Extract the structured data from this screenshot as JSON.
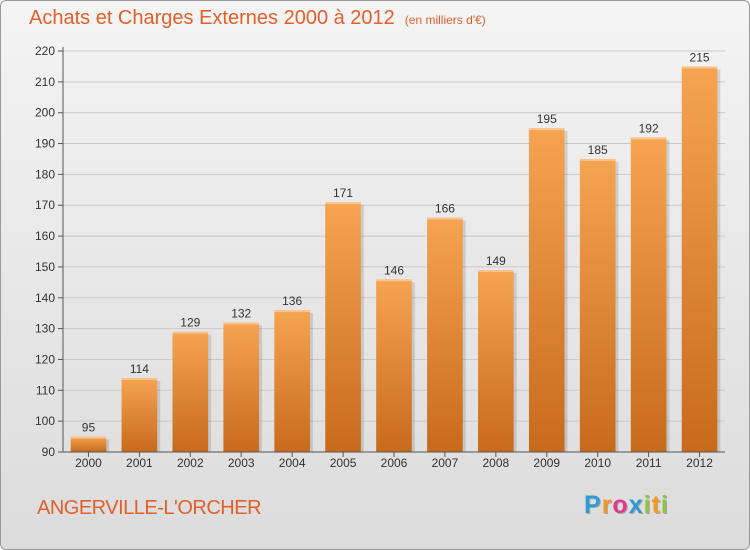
{
  "title": "Achats et Charges Externes 2000 à 2012",
  "subtitle": "(en milliers d'€)",
  "commune": "ANGERVILLE-L'ORCHER",
  "logo": {
    "text": "Proxiti",
    "letters": [
      "P",
      "r",
      "o",
      "x",
      "i",
      "t",
      "i"
    ],
    "colors": [
      "#2e9bd6",
      "#f39a1d",
      "#e23a8a",
      "#2e9bd6",
      "#8cc63f",
      "#f39a1d",
      "#8cc63f"
    ]
  },
  "colors": {
    "bar_top": "#f6a452",
    "bar_bottom": "#c86a1c",
    "title": "#e2602a"
  },
  "chart_data": {
    "type": "bar",
    "title": "Achats et Charges Externes 2000 à 2012",
    "subtitle": "(en milliers d'€)",
    "xlabel": "",
    "ylabel": "",
    "categories": [
      "2000",
      "2001",
      "2002",
      "2003",
      "2004",
      "2005",
      "2006",
      "2007",
      "2008",
      "2009",
      "2010",
      "2011",
      "2012"
    ],
    "values": [
      95,
      114,
      129,
      132,
      136,
      171,
      146,
      166,
      149,
      195,
      185,
      192,
      215
    ],
    "ylim": [
      90,
      220
    ],
    "yticks": [
      90,
      100,
      110,
      120,
      130,
      140,
      150,
      160,
      170,
      180,
      190,
      200,
      210,
      220
    ],
    "grid": true,
    "legend": "none"
  }
}
